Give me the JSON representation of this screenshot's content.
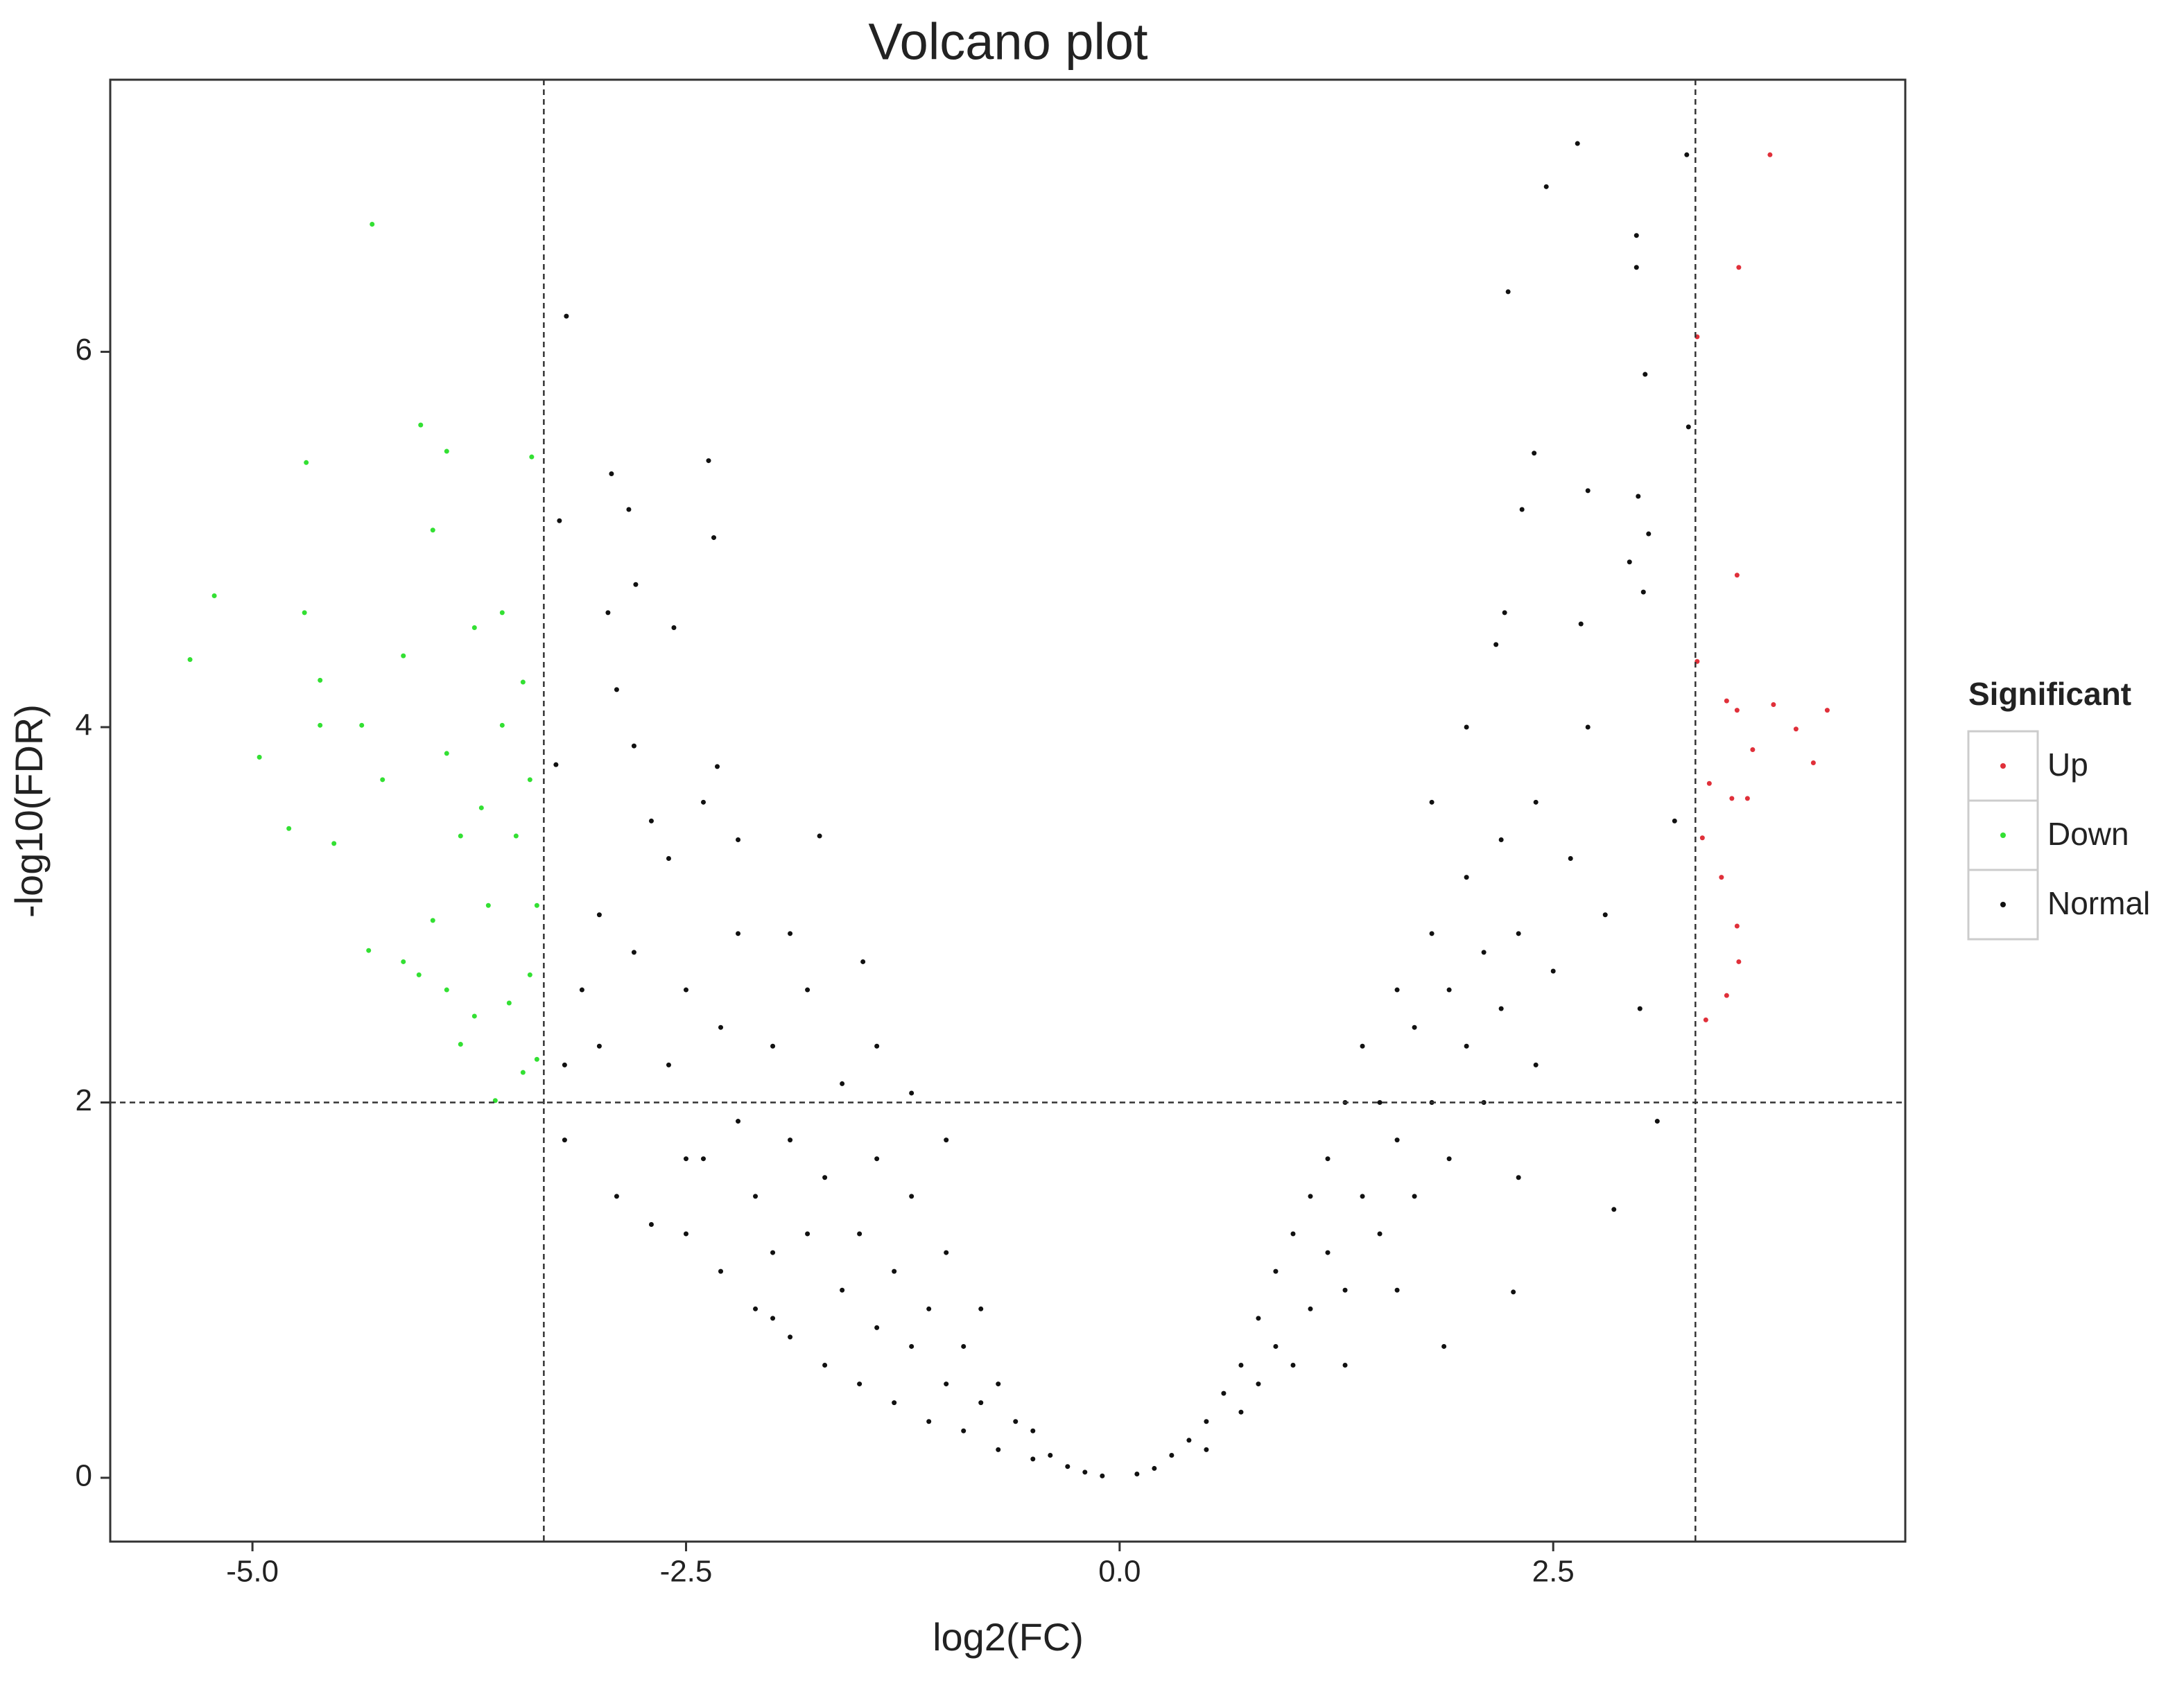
{
  "chart_data": {
    "type": "scatter",
    "title": "Volcano plot",
    "x_label": "log2(FC)",
    "y_label": "-log10(FDR)",
    "xlim": [
      -5.82,
      4.53
    ],
    "ylim": [
      -0.34,
      7.45
    ],
    "xticks": [
      {
        "value": -5,
        "label": "-5.0"
      },
      -2.5,
      {
        "value": 0,
        "label": "0.0"
      },
      2.5
    ],
    "yticks": [
      0,
      2,
      4,
      6
    ],
    "grid": false,
    "legend": "right",
    "legend_title": "Significant",
    "thresholds": {
      "x": [
        -3.32,
        3.32
      ],
      "y": 2
    },
    "series": [
      {
        "name": "Up",
        "color": "#e0303a",
        "x": [
          3.75,
          3.57,
          3.33,
          3.56,
          3.5,
          3.77,
          4.08,
          3.56,
          3.9,
          3.65,
          4.0,
          3.4,
          3.53,
          3.62,
          3.36,
          3.47,
          3.56,
          3.57,
          3.5,
          3.38,
          3.33
        ],
        "values": [
          7.05,
          6.45,
          6.08,
          4.81,
          4.14,
          4.12,
          4.09,
          4.09,
          3.99,
          3.88,
          3.81,
          3.7,
          3.62,
          3.62,
          3.41,
          3.2,
          2.94,
          2.75,
          2.57,
          2.44,
          4.35
        ]
      },
      {
        "name": "Down",
        "color": "#33e033",
        "x": [
          -4.31,
          -4.03,
          -4.69,
          -3.39,
          -3.88,
          -5.22,
          -4.7,
          -5.36,
          -4.61,
          -4.96,
          -4.79,
          -4.53,
          -4.33,
          -4.04,
          -3.8,
          -3.6,
          -3.44,
          -3.4,
          -3.56,
          -3.72,
          -3.96,
          -4.13,
          -4.25,
          -3.8,
          -3.64,
          -3.96,
          -4.13,
          -3.48,
          -3.36,
          -4.37,
          -4.61,
          -3.88,
          -3.68,
          -3.4,
          -3.52,
          -3.72,
          -3.88,
          -3.36,
          -3.56,
          -3.44
        ],
        "values": [
          6.68,
          5.61,
          5.41,
          5.44,
          5.47,
          4.7,
          4.61,
          4.36,
          4.25,
          3.84,
          3.46,
          3.38,
          2.81,
          2.68,
          2.31,
          2.01,
          2.16,
          2.68,
          4.01,
          4.53,
          5.05,
          4.38,
          3.72,
          3.42,
          3.05,
          2.97,
          2.75,
          3.42,
          3.05,
          4.01,
          4.01,
          3.86,
          3.57,
          3.72,
          2.53,
          2.46,
          2.6,
          2.23,
          4.61,
          4.24
        ]
      },
      {
        "name": "Normal",
        "color": "#111111",
        "x": [
          -3.19,
          -2.93,
          -2.83,
          -2.37,
          -2.34,
          -3.23,
          -2.95,
          -2.79,
          -2.57,
          2.64,
          2.46,
          3.27,
          2.98,
          2.98,
          2.24,
          3.03,
          3.28,
          2.39,
          2.32,
          2.7,
          2.99,
          3.05,
          2.94,
          3.02,
          2.22,
          2.66,
          2.17,
          2.85,
          2.27,
          1.87,
          -1.73,
          -1.48,
          -1.2,
          -2.32,
          -3.2,
          -3.0,
          -3.0,
          -2.9,
          -2.8,
          -2.8,
          -2.7,
          -2.6,
          -2.6,
          -2.5,
          -2.5,
          -2.4,
          -2.4,
          -2.3,
          -2.3,
          -2.2,
          -2.2,
          -2.1,
          -2.1,
          -2.0,
          -2.0,
          -1.9,
          -1.9,
          -1.8,
          -1.8,
          -1.7,
          -1.7,
          -1.6,
          -1.6,
          -1.5,
          -1.5,
          -1.4,
          -1.4,
          -1.3,
          -1.3,
          -1.2,
          -1.2,
          -1.1,
          -1.1,
          -1.0,
          -1.0,
          -0.9,
          -0.9,
          -0.8,
          -0.8,
          -0.7,
          -0.7,
          -0.6,
          -0.5,
          -0.5,
          -0.4,
          -0.3,
          -0.2,
          -0.1,
          -3.1,
          -2.7,
          -2.9,
          -2.2,
          -1.9,
          -1.4,
          -1.0,
          -2.5,
          -2.0,
          -3.25,
          -3.2,
          0.1,
          0.2,
          0.3,
          0.4,
          0.5,
          0.5,
          0.6,
          0.7,
          0.7,
          0.8,
          0.8,
          0.9,
          0.9,
          1.0,
          1.0,
          1.1,
          1.1,
          1.2,
          1.2,
          1.3,
          1.3,
          1.4,
          1.4,
          1.5,
          1.5,
          1.6,
          1.6,
          1.7,
          1.7,
          1.8,
          1.8,
          1.9,
          1.9,
          2.0,
          2.0,
          2.1,
          2.1,
          2.2,
          2.2,
          2.3,
          2.4,
          2.4,
          2.5,
          2.6,
          2.8,
          3.0,
          3.1,
          2.0,
          1.8,
          2.7,
          3.2,
          1.3,
          1.6,
          2.3
        ],
        "values": [
          6.19,
          5.35,
          5.16,
          5.42,
          5.01,
          5.1,
          4.61,
          4.76,
          4.53,
          7.11,
          6.88,
          7.05,
          6.62,
          6.45,
          6.32,
          5.88,
          5.6,
          5.46,
          5.16,
          5.26,
          5.23,
          5.03,
          4.88,
          4.72,
          4.61,
          4.55,
          4.44,
          1.43,
          0.99,
          0.7,
          3.42,
          2.75,
          2.05,
          3.79,
          1.8,
          2.3,
          3.0,
          1.5,
          2.8,
          3.9,
          1.35,
          2.2,
          3.3,
          1.3,
          2.6,
          1.7,
          3.6,
          1.1,
          2.4,
          1.9,
          2.9,
          0.9,
          1.5,
          2.3,
          1.2,
          0.75,
          1.8,
          1.3,
          2.6,
          0.6,
          1.6,
          1.0,
          2.1,
          0.5,
          1.3,
          0.8,
          1.7,
          0.4,
          1.1,
          0.7,
          1.5,
          0.3,
          0.9,
          0.5,
          1.2,
          0.25,
          0.7,
          0.4,
          0.9,
          0.15,
          0.5,
          0.3,
          0.1,
          0.25,
          0.12,
          0.06,
          0.03,
          0.01,
          2.6,
          3.5,
          4.2,
          3.4,
          2.9,
          2.3,
          1.8,
          1.7,
          0.85,
          3.8,
          2.2,
          0.02,
          0.05,
          0.12,
          0.2,
          0.3,
          0.15,
          0.45,
          0.35,
          0.6,
          0.5,
          0.85,
          0.7,
          1.1,
          0.6,
          1.3,
          0.9,
          1.5,
          1.2,
          1.7,
          1.0,
          2.0,
          1.5,
          2.3,
          1.3,
          2.0,
          1.8,
          2.6,
          1.5,
          2.4,
          2.0,
          2.9,
          1.7,
          2.6,
          2.3,
          3.2,
          2.0,
          2.8,
          2.5,
          3.4,
          2.9,
          2.2,
          3.6,
          2.7,
          3.3,
          3.0,
          2.5,
          1.9,
          4.0,
          3.6,
          4.0,
          3.5,
          0.6,
          1.0,
          1.6
        ]
      }
    ]
  }
}
